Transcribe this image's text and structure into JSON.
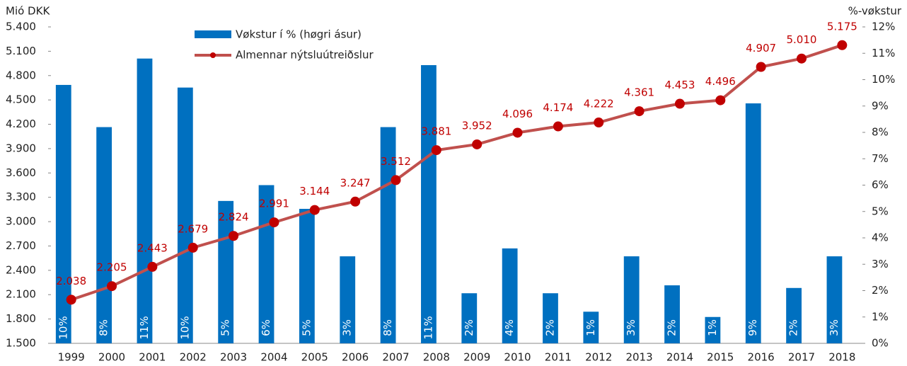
{
  "chart_data": {
    "type": "combo",
    "y_label": "Mió DKK",
    "y2_label": "%-vøkstur",
    "categories": [
      "1999",
      "2000",
      "2001",
      "2002",
      "2003",
      "2004",
      "2005",
      "2006",
      "2007",
      "2008",
      "2009",
      "2010",
      "2011",
      "2012",
      "2013",
      "2014",
      "2015",
      "2016",
      "2017",
      "2018"
    ],
    "series": [
      {
        "name": "Vøkstur í % (høgri ásur)",
        "type": "bar",
        "axis": "y2",
        "color": "#0070c0",
        "values": [
          9.8,
          8.2,
          10.8,
          9.7,
          5.4,
          6.0,
          5.1,
          3.3,
          8.2,
          10.55,
          1.9,
          3.6,
          1.9,
          1.2,
          3.3,
          2.2,
          1.0,
          9.1,
          2.1,
          3.3
        ],
        "value_labels": [
          "10%",
          "8%",
          "11%",
          "10%",
          "5%",
          "6%",
          "5%",
          "3%",
          "8%",
          "11%",
          "2%",
          "4%",
          "2%",
          "1%",
          "3%",
          "2%",
          "1%",
          "9%",
          "2%",
          "3%"
        ]
      },
      {
        "name": "Almennar nýtsluútreiðslur",
        "type": "line",
        "axis": "y",
        "color": "#c0504d",
        "label_color": "#c00000",
        "values": [
          2038,
          2205,
          2443,
          2679,
          2824,
          2991,
          3144,
          3247,
          3512,
          3881,
          3952,
          4096,
          4174,
          4222,
          4361,
          4453,
          4496,
          4907,
          5010,
          5175
        ],
        "value_labels": [
          "2.038",
          "2.205",
          "2.443",
          "2.679",
          "2.824",
          "2.991",
          "3.144",
          "3.247",
          "3.512",
          "3.881",
          "3.952",
          "4.096",
          "4.174",
          "4.222",
          "4.361",
          "4.453",
          "4.496",
          "4.907",
          "5.010",
          "5.175"
        ]
      }
    ],
    "ylim": [
      1500,
      5400
    ],
    "yticks": [
      {
        "value": 1500,
        "label": "1.500"
      },
      {
        "value": 1800,
        "label": "1.800"
      },
      {
        "value": 2100,
        "label": "2.100"
      },
      {
        "value": 2400,
        "label": "2.400"
      },
      {
        "value": 2700,
        "label": "2.700"
      },
      {
        "value": 3000,
        "label": "3.000"
      },
      {
        "value": 3300,
        "label": "3.300"
      },
      {
        "value": 3600,
        "label": "3.600"
      },
      {
        "value": 3900,
        "label": "3.900"
      },
      {
        "value": 4200,
        "label": "4.200"
      },
      {
        "value": 4500,
        "label": "4.500"
      },
      {
        "value": 4800,
        "label": "4.800"
      },
      {
        "value": 5100,
        "label": "5.100"
      },
      {
        "value": 5400,
        "label": "5.400"
      }
    ],
    "y2lim": [
      0,
      12
    ],
    "y2ticks": [
      {
        "value": 0,
        "label": "0%"
      },
      {
        "value": 1,
        "label": "1%"
      },
      {
        "value": 2,
        "label": "2%"
      },
      {
        "value": 3,
        "label": "3%"
      },
      {
        "value": 4,
        "label": "4%"
      },
      {
        "value": 5,
        "label": "5%"
      },
      {
        "value": 6,
        "label": "6%"
      },
      {
        "value": 7,
        "label": "7%"
      },
      {
        "value": 8,
        "label": "8%"
      },
      {
        "value": 9,
        "label": "9%"
      },
      {
        "value": 10,
        "label": "10%"
      },
      {
        "value": 11,
        "label": "11%"
      },
      {
        "value": 12,
        "label": "12%"
      }
    ]
  }
}
